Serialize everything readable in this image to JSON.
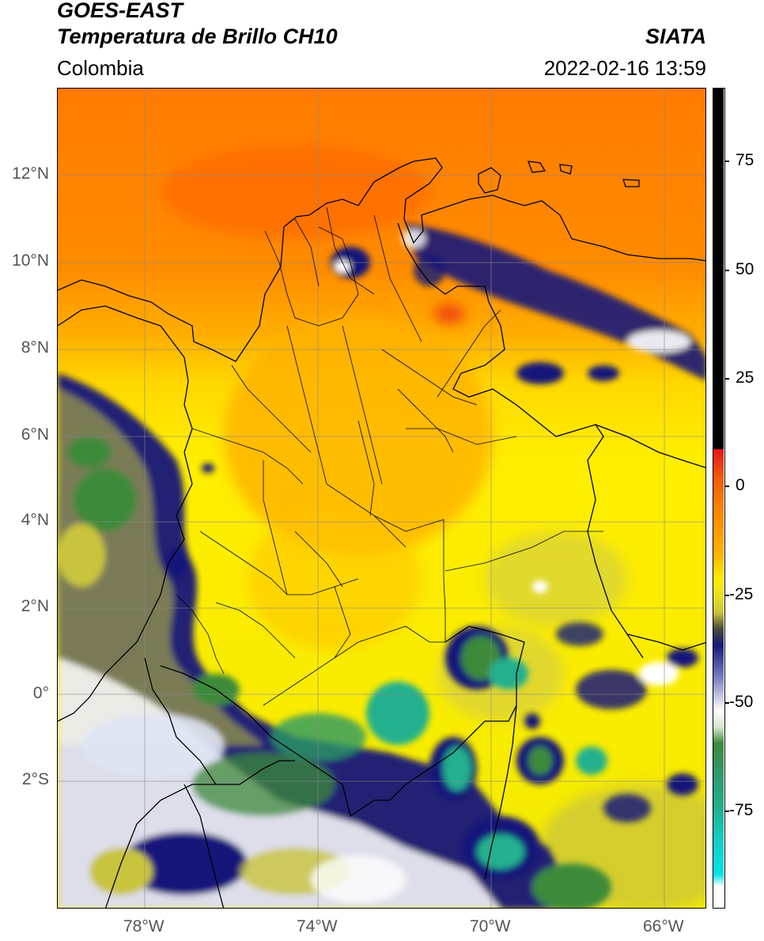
{
  "header": {
    "satellite": "GOES-EAST",
    "product": "Temperatura de Brillo CH10",
    "region": "Colombia",
    "agency": "SIATA",
    "timestamp": "2022-02-16 13:59"
  },
  "map": {
    "lat_labels": [
      "12°N",
      "10°N",
      "8°N",
      "6°N",
      "4°N",
      "2°N",
      "0°",
      "2°S"
    ],
    "lon_labels": [
      "78°W",
      "74°W",
      "70°W",
      "66°W"
    ],
    "lon_range": [
      -80,
      -65
    ],
    "lat_range": [
      -5,
      14
    ]
  },
  "colorbar": {
    "labels": [
      "75",
      "50",
      "25",
      "0",
      "-25",
      "-50",
      "-75"
    ],
    "range": [
      -95,
      90
    ],
    "colors": {
      "black": "#000000",
      "red": "#e8141a",
      "orange": "#ff8800",
      "yellow": "#ffee00",
      "olive": "#c9c43c",
      "navy": "#14197a",
      "white": "#ffffff",
      "green": "#3e8a3a",
      "teal": "#22b08e",
      "cyan": "#00e5e5"
    }
  }
}
